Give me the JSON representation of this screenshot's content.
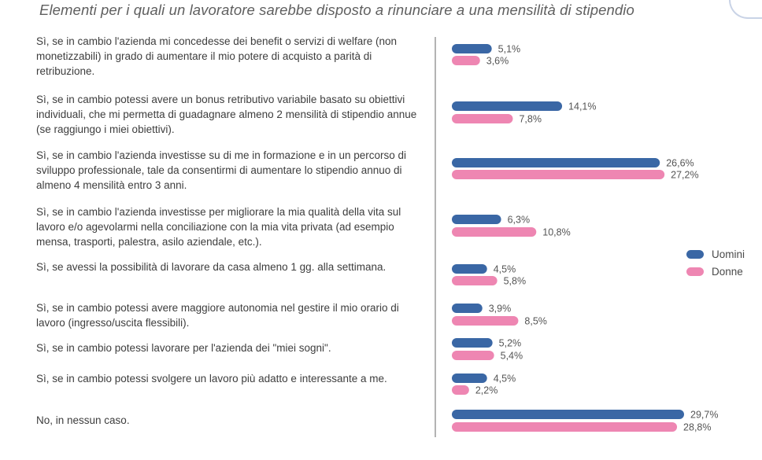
{
  "chart_data": {
    "type": "bar",
    "orientation": "horizontal",
    "title": "Elementi per i quali un lavoratore sarebbe disposto a rinunciare a una mensilità di stipendio",
    "categories": [
      "Sì, se in cambio l'azienda mi concedesse dei benefit o servizi di welfare (non monetizzabili) in grado di aumentare il mio potere di acquisto a parità di retribuzione.",
      "Sì, se in cambio potessi avere un bonus retributivo variabile basato su obiettivi individuali, che mi permetta di guadagnare almeno 2 mensilità di stipendio annue (se raggiungo i miei obiettivi).",
      "Sì, se in cambio l'azienda investisse su di me in formazione e in un percorso di sviluppo professionale, tale da consentirmi di aumentare lo stipendio annuo di almeno 4 mensilità entro 3 anni.",
      "Sì, se in cambio l'azienda investisse per migliorare la mia qualità della vita sul lavoro e/o agevolarmi nella conciliazione con la mia vita privata (ad esempio mensa, trasporti, palestra, asilo aziendale, etc.).",
      "Sì, se avessi la possibilità di lavorare da casa almeno 1 gg. alla settimana.",
      "Sì, se in cambio potessi avere maggiore autonomia nel gestire il mio orario di lavoro (ingresso/uscita flessibili).",
      "Sì, se in cambio potessi lavorare per l'azienda dei \"miei sogni\".",
      "Sì, se in cambio potessi svolgere un lavoro più adatto e interessante a me.",
      "No, in nessun caso."
    ],
    "series": [
      {
        "name": "Uomini",
        "color": "#3a67a5",
        "values": [
          5.1,
          14.1,
          26.6,
          6.3,
          4.5,
          3.9,
          5.2,
          4.5,
          29.7
        ],
        "labels": [
          "5,1%",
          "14,1%",
          "26,6%",
          "6,3%",
          "4,5%",
          "3,9%",
          "5,2%",
          "4,5%",
          "29,7%"
        ]
      },
      {
        "name": "Donne",
        "color": "#ee86b2",
        "values": [
          3.6,
          7.8,
          27.2,
          10.8,
          5.8,
          8.5,
          5.4,
          2.2,
          28.8
        ],
        "labels": [
          "3,6%",
          "7,8%",
          "27,2%",
          "10,8%",
          "5,8%",
          "8,5%",
          "5,4%",
          "2,2%",
          "28,8%"
        ]
      }
    ],
    "xlim": [
      0,
      30
    ],
    "grid": false,
    "legend": "right"
  }
}
